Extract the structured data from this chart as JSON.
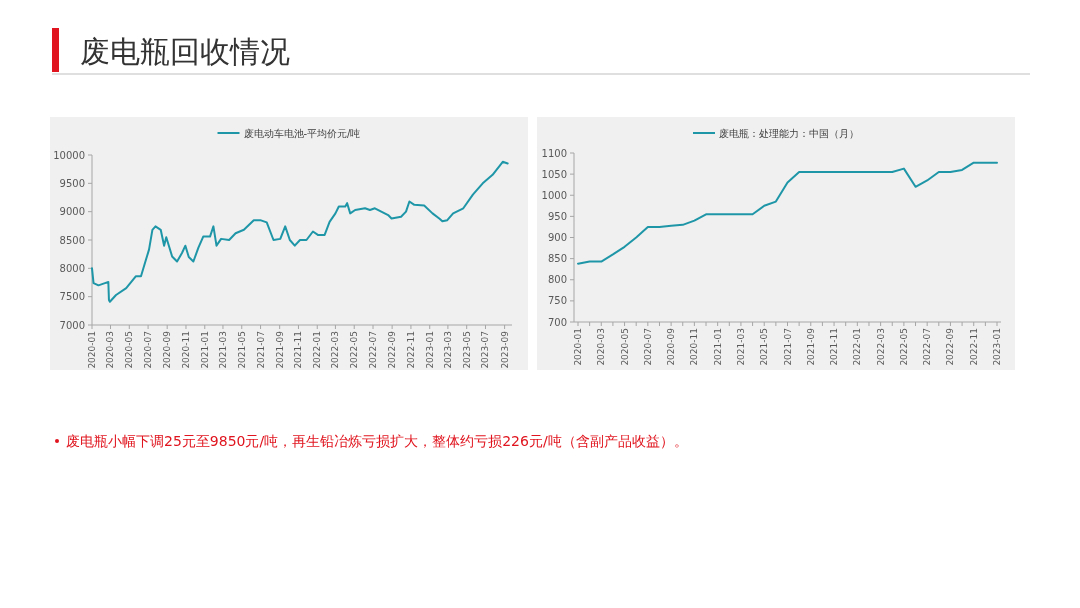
{
  "chart_data": [
    {
      "type": "line",
      "title": "废电瓶回收情况",
      "annotations": [
        "废电瓶小幅下调25元至9850元/吨，再生铅冶炼亏损扩大，整体约亏损226元/吨（含副产品收益）。"
      ],
      "legend": "top",
      "grid": false,
      "xlim": [
        "2020-01-01",
        "2023-09-25"
      ],
      "xticks": [
        "2020-01",
        "2020-03",
        "2020-05",
        "2020-07",
        "2020-09",
        "2020-11",
        "2021-01",
        "2021-03",
        "2021-05",
        "2021-07",
        "2021-09",
        "2021-11",
        "2022-01",
        "2022-03",
        "2022-05",
        "2022-07",
        "2022-09",
        "2022-11",
        "2023-01",
        "2023-03",
        "2023-05",
        "2023-07",
        "2023-09"
      ],
      "ylim": [
        7000,
        10000
      ],
      "yticks": [
        7000,
        7500,
        8000,
        8500,
        9000,
        9500,
        10000
      ],
      "series": [
        {
          "name": "废电动车电池-平均价元/吨",
          "color": "#1f96a8",
          "x": [
            "2020-01-01",
            "2020-01-06",
            "2020-01-22",
            "2020-02-12",
            "2020-02-23",
            "2020-02-25",
            "2020-02-28",
            "2020-03-19",
            "2020-04-21",
            "2020-05-22",
            "2020-06-08",
            "2020-06-24",
            "2020-07-04",
            "2020-07-15",
            "2020-07-25",
            "2020-08-11",
            "2020-08-22",
            "2020-08-29",
            "2020-09-17",
            "2020-10-03",
            "2020-10-19",
            "2020-10-30",
            "2020-11-10",
            "2020-11-25",
            "2020-12-11",
            "2020-12-27",
            "2021-01-18",
            "2021-01-29",
            "2021-02-08",
            "2021-02-23",
            "2021-03-21",
            "2021-04-11",
            "2021-05-08",
            "2021-06-09",
            "2021-06-30",
            "2021-07-21",
            "2021-08-12",
            "2021-09-03",
            "2021-09-19",
            "2021-10-04",
            "2021-10-20",
            "2021-11-06",
            "2021-11-27",
            "2021-12-18",
            "2022-01-03",
            "2022-01-25",
            "2022-02-10",
            "2022-03-01",
            "2022-03-12",
            "2022-04-02",
            "2022-04-08",
            "2022-04-18",
            "2022-05-04",
            "2022-06-05",
            "2022-06-21",
            "2022-07-07",
            "2022-08-19",
            "2022-08-30",
            "2022-09-30",
            "2022-10-16",
            "2022-10-27",
            "2022-11-12",
            "2022-12-14",
            "2023-01-10",
            "2023-02-01",
            "2023-02-11",
            "2023-02-27",
            "2023-03-18",
            "2023-04-20",
            "2023-05-21",
            "2023-06-22",
            "2023-07-24",
            "2023-08-26",
            "2023-09-11"
          ],
          "values": [
            8000,
            7740,
            7700,
            7740,
            7760,
            7440,
            7410,
            7530,
            7650,
            7860,
            7860,
            8150,
            8330,
            8680,
            8740,
            8680,
            8400,
            8550,
            8210,
            8120,
            8270,
            8400,
            8200,
            8120,
            8360,
            8560,
            8560,
            8740,
            8400,
            8520,
            8500,
            8620,
            8680,
            8850,
            8850,
            8810,
            8500,
            8520,
            8740,
            8500,
            8400,
            8500,
            8500,
            8650,
            8590,
            8590,
            8820,
            8970,
            9090,
            9090,
            9150,
            8970,
            9030,
            9060,
            9030,
            9060,
            8940,
            8880,
            8910,
            9000,
            9180,
            9120,
            9110,
            8970,
            8880,
            8830,
            8850,
            8970,
            9060,
            9300,
            9500,
            9650,
            9880,
            9850
          ]
        }
      ]
    },
    {
      "type": "line",
      "legend": "top",
      "grid": false,
      "categories": [
        "2020-01",
        null,
        "2020-03",
        null,
        "2020-05",
        null,
        "2020-07",
        null,
        "2020-09",
        null,
        "2020-11",
        null,
        "2021-01",
        null,
        "2021-03",
        null,
        "2021-05",
        null,
        "2021-07",
        null,
        "2021-09",
        null,
        "2021-11",
        null,
        "2022-01",
        null,
        "2022-03",
        null,
        "2022-05",
        null,
        "2022-07",
        null,
        "2022-09",
        null,
        "2022-11",
        null,
        "2023-01"
      ],
      "ylim": [
        700,
        1100
      ],
      "yticks": [
        700,
        750,
        800,
        850,
        900,
        950,
        1000,
        1050,
        1100
      ],
      "series": [
        {
          "name": "废电瓶：处理能力：中国（月）",
          "color": "#1f96a8",
          "values": [
            838,
            843,
            843,
            860,
            878,
            900,
            925,
            925,
            928,
            930,
            940,
            955,
            955,
            955,
            955,
            955,
            975,
            985,
            1030,
            1055,
            1055,
            1055,
            1055,
            1055,
            1055,
            1055,
            1055,
            1055,
            1063,
            1020,
            1035,
            1055,
            1055,
            1060,
            1077,
            1077,
            1077
          ]
        }
      ]
    }
  ]
}
